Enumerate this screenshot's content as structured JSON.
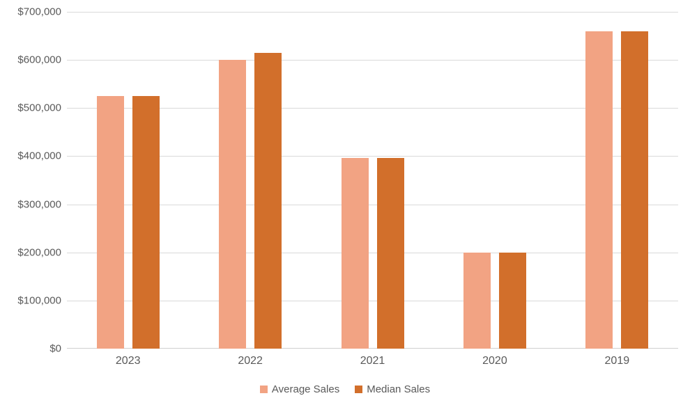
{
  "chart_data": {
    "type": "bar",
    "title": "",
    "xlabel": "",
    "ylabel": "",
    "categories": [
      "2023",
      "2022",
      "2021",
      "2020",
      "2019"
    ],
    "series": [
      {
        "name": "Average Sales",
        "color": "#F2A383",
        "values": [
          525000,
          600000,
          397000,
          200000,
          660000
        ]
      },
      {
        "name": "Median Sales",
        "color": "#D26F2B",
        "values": [
          525000,
          615000,
          397000,
          200000,
          660000
        ]
      }
    ],
    "ylim": [
      0,
      700000
    ],
    "y_tick_step": 100000,
    "y_tick_labels_top_to_bottom": [
      "$700,000",
      "$600,000",
      "$500,000",
      "$400,000",
      "$300,000",
      "$200,000",
      "$100,000",
      "$0"
    ],
    "grid": true,
    "legend_position": "bottom",
    "style": {
      "grid_color": "#D9D9D9",
      "axis_color": "#D0D0D0",
      "text_color": "#595959",
      "background": "#FFFFFF"
    }
  }
}
